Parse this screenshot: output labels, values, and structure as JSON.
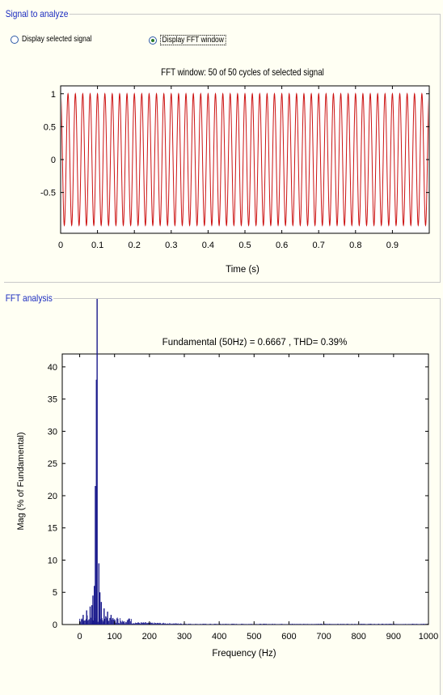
{
  "signal_panel": {
    "legend": "Signal to analyze",
    "radio_selected_signal": "Display selected signal",
    "radio_fft_window": "Display FFT window",
    "selected_option": "fft_window"
  },
  "fft_panel": {
    "legend": "FFT analysis"
  },
  "colors": {
    "signal_line": "#cc1111",
    "spectrum_bar": "#1a1a8c",
    "legend_text": "#1a2bbf",
    "panel_background": "#fffff3"
  },
  "chart_data": [
    {
      "type": "line",
      "title": "FFT window: 50 of 50 cycles of selected signal",
      "xlabel": "Time (s)",
      "ylabel": "",
      "xlim": [
        0,
        1
      ],
      "ylim": [
        -1,
        1
      ],
      "x_ticks": [
        "0",
        "0.1",
        "0.2",
        "0.3",
        "0.4",
        "0.5",
        "0.6",
        "0.7",
        "0.8",
        "0.9"
      ],
      "y_ticks": [
        "1",
        "0.5",
        "0",
        "-0.5"
      ],
      "signal": {
        "frequency_hz": 50,
        "amplitude": 1,
        "cycles": 50
      },
      "grid": false
    },
    {
      "type": "bar",
      "title": "Fundamental (50Hz) = 0.6667 , THD= 0.39%",
      "xlabel": "Frequency (Hz)",
      "ylabel": "Mag (% of Fundamental)",
      "xlim": [
        -50,
        1000
      ],
      "ylim": [
        0,
        42
      ],
      "x_ticks": [
        "0",
        "100",
        "200",
        "300",
        "400",
        "500",
        "600",
        "700",
        "800",
        "900",
        "1000"
      ],
      "y_ticks": [
        "0",
        "5",
        "10",
        "15",
        "20",
        "25",
        "30",
        "35",
        "40"
      ],
      "peaks": [
        {
          "x": 50,
          "value": 100
        },
        {
          "x": 48,
          "value": 38
        },
        {
          "x": 45,
          "value": 21.5
        },
        {
          "x": 55,
          "value": 9.5
        },
        {
          "x": 42,
          "value": 6
        },
        {
          "x": 58,
          "value": 5
        },
        {
          "x": 38,
          "value": 4.5
        },
        {
          "x": 62,
          "value": 3.5
        },
        {
          "x": 35,
          "value": 3
        },
        {
          "x": 70,
          "value": 2.5
        },
        {
          "x": 30,
          "value": 2.8
        },
        {
          "x": 20,
          "value": 2.2
        },
        {
          "x": 80,
          "value": 2
        },
        {
          "x": 90,
          "value": 1.5
        },
        {
          "x": 10,
          "value": 1.5
        }
      ],
      "noise_floor": {
        "from": 0,
        "to": 1000,
        "max": 0.7
      },
      "grid": false
    }
  ]
}
